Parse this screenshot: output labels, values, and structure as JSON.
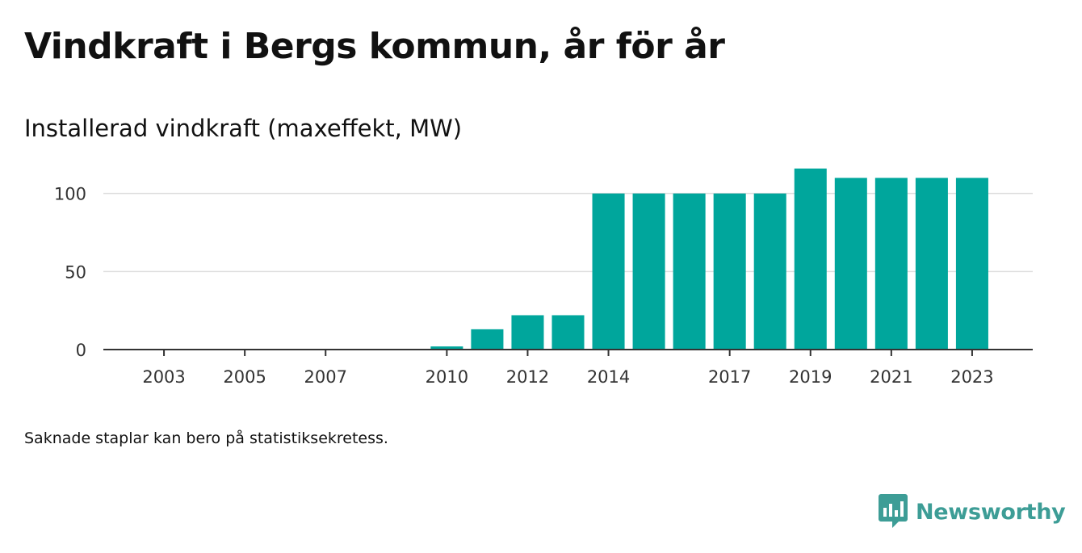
{
  "title": "Vindkraft i Bergs kommun, år för år",
  "subtitle": "Installerad vindkraft (maxeffekt, MW)",
  "note": "Saknade staplar kan bero på statistiksekretess.",
  "brand": {
    "name": "Newsworthy",
    "color": "#3d9d96",
    "icon": "bar-chart-speech-bubble-icon"
  },
  "chart_data": {
    "type": "bar",
    "title": "",
    "xlabel": "",
    "ylabel": "",
    "bar_color": "#00a69c",
    "grid": true,
    "ylim": [
      0,
      120
    ],
    "yticks": [
      0,
      50,
      100
    ],
    "xlim": [
      2001.5,
      2024.5
    ],
    "xticks": [
      2003,
      2005,
      2007,
      2010,
      2012,
      2014,
      2017,
      2019,
      2021,
      2023
    ],
    "x": [
      2010,
      2011,
      2012,
      2013,
      2014,
      2015,
      2016,
      2017,
      2018,
      2019,
      2020,
      2021,
      2022,
      2023
    ],
    "values": [
      2,
      13,
      22,
      22,
      100,
      100,
      100,
      100,
      100,
      116,
      110,
      110,
      110,
      110
    ]
  }
}
